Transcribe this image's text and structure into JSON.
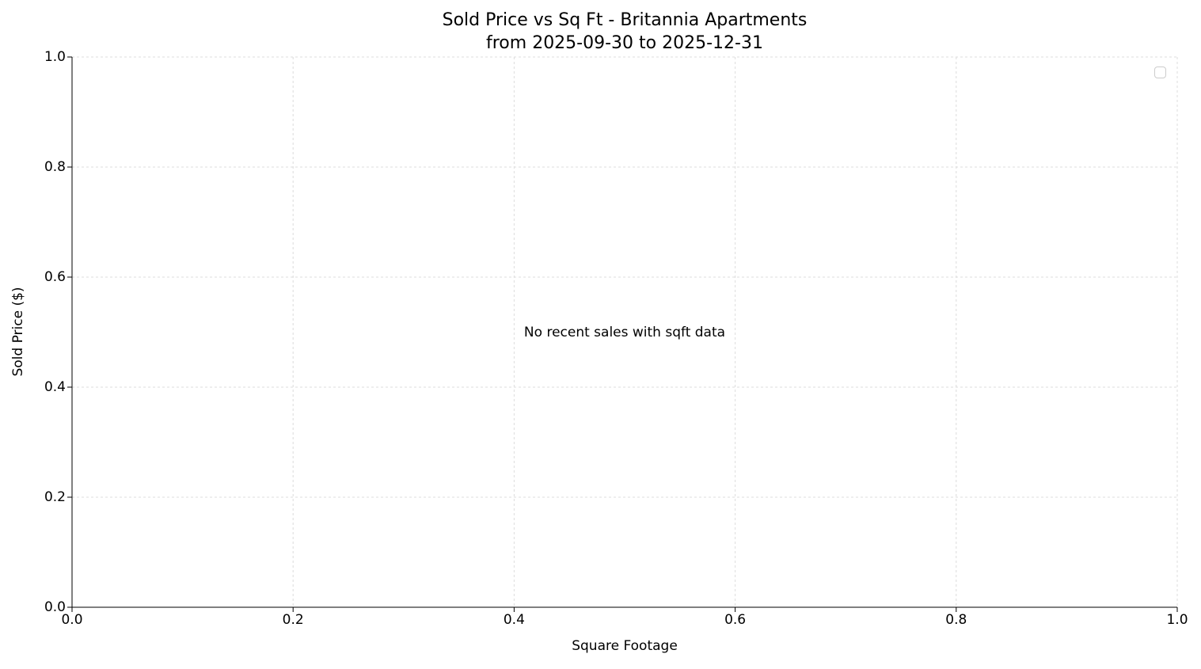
{
  "chart_data": {
    "type": "scatter",
    "title": "Sold Price vs Sq Ft - Britannia Apartments",
    "subtitle": "from 2025-09-30 to 2025-12-31",
    "xlabel": "Square Footage",
    "ylabel": "Sold Price ($)",
    "xlim": [
      0.0,
      1.0
    ],
    "ylim": [
      0.0,
      1.0
    ],
    "x_ticks": [
      "0.0",
      "0.2",
      "0.4",
      "0.6",
      "0.8",
      "1.0"
    ],
    "y_ticks": [
      "0.0",
      "0.2",
      "0.4",
      "0.6",
      "0.8",
      "1.0"
    ],
    "grid": true,
    "grid_style": "dashed",
    "series": [],
    "legend": {
      "visible": true,
      "position": "upper right",
      "entries": []
    },
    "annotation": "No recent sales with sqft data",
    "annotation_position": {
      "x": 0.5,
      "y": 0.5
    }
  },
  "colors": {
    "background": "#ffffff",
    "grid": "#dcdcdc",
    "axis": "#000000",
    "text": "#000000",
    "legend_border": "#cccccc"
  }
}
